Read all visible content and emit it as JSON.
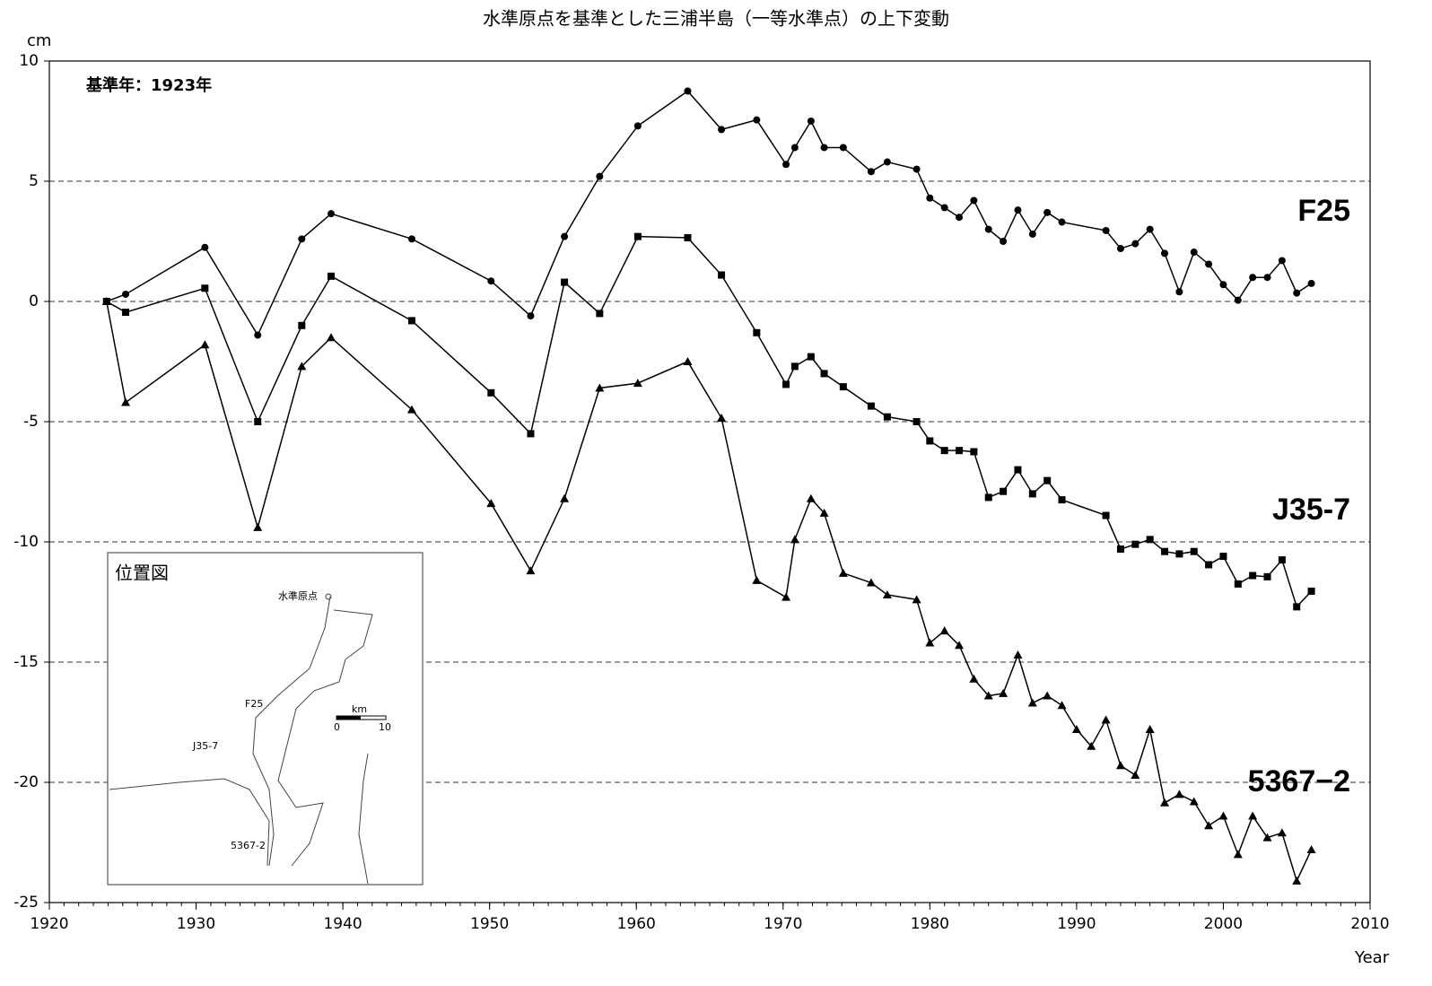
{
  "chart_data": {
    "type": "line",
    "title": "水準原点を基準とした三浦半島（一等水準点）の上下変動",
    "y_label": "cm",
    "x_label": "Year",
    "annotation": "基準年：1923年",
    "xlim": [
      1920,
      2010
    ],
    "xticks": [
      1920,
      1930,
      1940,
      1950,
      1960,
      1970,
      1980,
      1990,
      2000,
      2010
    ],
    "ylim": [
      -25,
      10
    ],
    "yticks": [
      10,
      5,
      0,
      -5,
      -10,
      -15,
      -20,
      -25
    ],
    "grid": true,
    "series": [
      {
        "name": "F25",
        "color": "#000000",
        "marker": "circle",
        "x": [
          1923.9,
          1925.2,
          1930.6,
          1934.2,
          1937.2,
          1939.2,
          1944.7,
          1950.1,
          1952.8,
          1955.1,
          1957.5,
          1960.1,
          1963.5,
          1965.8,
          1968.2,
          1970.2,
          1970.8,
          1971.9,
          1972.8,
          1974.1,
          1976,
          1977.1,
          1979.1,
          1980,
          1981,
          1982,
          1983,
          1984,
          1985,
          1986,
          1987,
          1988,
          1989,
          1992,
          1993,
          1994,
          1995,
          1996,
          1997,
          1998,
          1999,
          2000,
          2001,
          2002,
          2003,
          2004,
          2005,
          2006
        ],
        "values": [
          0,
          0.3,
          2.25,
          -1.4,
          2.6,
          3.65,
          2.6,
          0.85,
          -0.6,
          2.7,
          5.2,
          7.3,
          8.75,
          7.15,
          7.55,
          5.7,
          6.4,
          7.5,
          6.4,
          6.4,
          5.4,
          5.8,
          5.5,
          4.3,
          3.9,
          3.5,
          4.2,
          3.0,
          2.5,
          3.8,
          2.8,
          3.7,
          3.3,
          2.95,
          2.2,
          2.4,
          3.0,
          2.0,
          0.4,
          2.05,
          1.55,
          0.7,
          0.05,
          1.0,
          1.0,
          1.7,
          0.35,
          0.75
        ]
      },
      {
        "name": "J35-7",
        "color": "#000000",
        "marker": "square",
        "x": [
          1923.9,
          1925.2,
          1930.6,
          1934.2,
          1937.2,
          1939.2,
          1944.7,
          1950.1,
          1952.8,
          1955.1,
          1957.5,
          1960.1,
          1963.5,
          1965.8,
          1968.2,
          1970.2,
          1970.8,
          1971.9,
          1972.8,
          1974.1,
          1976,
          1977.1,
          1979.1,
          1980,
          1981,
          1982,
          1983,
          1984,
          1985,
          1986,
          1987,
          1988,
          1989,
          1992,
          1993,
          1994,
          1995,
          1996,
          1997,
          1998,
          1999,
          2000,
          2001,
          2002,
          2003,
          2004,
          2005,
          2006
        ],
        "values": [
          0,
          -0.45,
          0.55,
          -5.0,
          -1.0,
          1.05,
          -0.8,
          -3.8,
          -5.5,
          0.8,
          -0.5,
          2.7,
          2.65,
          1.1,
          -1.3,
          -3.45,
          -2.7,
          -2.3,
          -3.0,
          -3.55,
          -4.35,
          -4.8,
          -5.0,
          -5.8,
          -6.2,
          -6.2,
          -6.25,
          -8.15,
          -7.9,
          -7.0,
          -8.0,
          -7.45,
          -8.25,
          -8.9,
          -10.3,
          -10.1,
          -9.9,
          -10.4,
          -10.5,
          -10.4,
          -10.95,
          -10.6,
          -11.75,
          -11.4,
          -11.45,
          -10.75,
          -12.7,
          -12.05
        ]
      },
      {
        "name": "5367−2",
        "color": "#000000",
        "marker": "triangle",
        "x": [
          1923.9,
          1925.2,
          1930.6,
          1934.2,
          1937.2,
          1939.2,
          1944.7,
          1950.1,
          1952.8,
          1955.1,
          1957.5,
          1960.1,
          1963.5,
          1965.8,
          1968.2,
          1970.2,
          1970.8,
          1971.9,
          1972.8,
          1974.1,
          1976,
          1977.1,
          1979.1,
          1980,
          1981,
          1982,
          1983,
          1984,
          1985,
          1986,
          1987,
          1988,
          1989,
          1990,
          1991,
          1992,
          1993,
          1994,
          1995,
          1996,
          1997,
          1998,
          1999,
          2000,
          2001,
          2002,
          2003,
          2004,
          2005,
          2006
        ],
        "values": [
          0,
          -4.2,
          -1.8,
          -9.4,
          -2.7,
          -1.5,
          -4.5,
          -8.4,
          -11.2,
          -8.2,
          -3.6,
          -3.4,
          -2.5,
          -4.85,
          -11.6,
          -12.3,
          -9.9,
          -8.2,
          -8.8,
          -11.3,
          -11.7,
          -12.2,
          -12.4,
          -14.2,
          -13.7,
          -14.3,
          -15.7,
          -16.4,
          -16.3,
          -14.7,
          -16.7,
          -16.4,
          -16.8,
          -17.8,
          -18.5,
          -17.4,
          -19.3,
          -19.7,
          -17.8,
          -20.85,
          -20.5,
          -20.8,
          -21.8,
          -21.4,
          -23.0,
          -21.4,
          -22.3,
          -22.1,
          -24.1,
          -22.8
        ]
      }
    ]
  },
  "inset": {
    "title": "位置図",
    "labels": [
      "水準原点",
      "F25",
      "J35-7",
      "5367-2",
      "km",
      "0",
      "10"
    ]
  }
}
